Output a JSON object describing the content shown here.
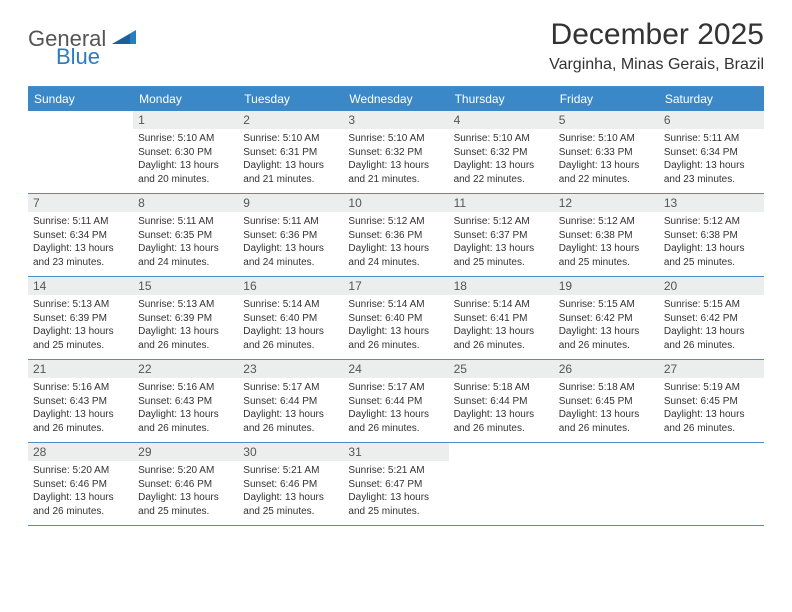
{
  "logo": {
    "text1": "General",
    "text2": "Blue"
  },
  "title": "December 2025",
  "location": "Varginha, Minas Gerais, Brazil",
  "colors": {
    "header_bg": "#3b88c8",
    "header_text": "#ffffff",
    "daynum_bg": "#eceeee",
    "border": "#4a8fc9",
    "body_text": "#333333",
    "logo_gray": "#555555",
    "logo_blue": "#2b7bbf"
  },
  "day_names": [
    "Sunday",
    "Monday",
    "Tuesday",
    "Wednesday",
    "Thursday",
    "Friday",
    "Saturday"
  ],
  "weeks": [
    [
      {
        "n": "",
        "sr": "",
        "ss": "",
        "dl": ""
      },
      {
        "n": "1",
        "sr": "Sunrise: 5:10 AM",
        "ss": "Sunset: 6:30 PM",
        "dl": "Daylight: 13 hours and 20 minutes."
      },
      {
        "n": "2",
        "sr": "Sunrise: 5:10 AM",
        "ss": "Sunset: 6:31 PM",
        "dl": "Daylight: 13 hours and 21 minutes."
      },
      {
        "n": "3",
        "sr": "Sunrise: 5:10 AM",
        "ss": "Sunset: 6:32 PM",
        "dl": "Daylight: 13 hours and 21 minutes."
      },
      {
        "n": "4",
        "sr": "Sunrise: 5:10 AM",
        "ss": "Sunset: 6:32 PM",
        "dl": "Daylight: 13 hours and 22 minutes."
      },
      {
        "n": "5",
        "sr": "Sunrise: 5:10 AM",
        "ss": "Sunset: 6:33 PM",
        "dl": "Daylight: 13 hours and 22 minutes."
      },
      {
        "n": "6",
        "sr": "Sunrise: 5:11 AM",
        "ss": "Sunset: 6:34 PM",
        "dl": "Daylight: 13 hours and 23 minutes."
      }
    ],
    [
      {
        "n": "7",
        "sr": "Sunrise: 5:11 AM",
        "ss": "Sunset: 6:34 PM",
        "dl": "Daylight: 13 hours and 23 minutes."
      },
      {
        "n": "8",
        "sr": "Sunrise: 5:11 AM",
        "ss": "Sunset: 6:35 PM",
        "dl": "Daylight: 13 hours and 24 minutes."
      },
      {
        "n": "9",
        "sr": "Sunrise: 5:11 AM",
        "ss": "Sunset: 6:36 PM",
        "dl": "Daylight: 13 hours and 24 minutes."
      },
      {
        "n": "10",
        "sr": "Sunrise: 5:12 AM",
        "ss": "Sunset: 6:36 PM",
        "dl": "Daylight: 13 hours and 24 minutes."
      },
      {
        "n": "11",
        "sr": "Sunrise: 5:12 AM",
        "ss": "Sunset: 6:37 PM",
        "dl": "Daylight: 13 hours and 25 minutes."
      },
      {
        "n": "12",
        "sr": "Sunrise: 5:12 AM",
        "ss": "Sunset: 6:38 PM",
        "dl": "Daylight: 13 hours and 25 minutes."
      },
      {
        "n": "13",
        "sr": "Sunrise: 5:12 AM",
        "ss": "Sunset: 6:38 PM",
        "dl": "Daylight: 13 hours and 25 minutes."
      }
    ],
    [
      {
        "n": "14",
        "sr": "Sunrise: 5:13 AM",
        "ss": "Sunset: 6:39 PM",
        "dl": "Daylight: 13 hours and 25 minutes."
      },
      {
        "n": "15",
        "sr": "Sunrise: 5:13 AM",
        "ss": "Sunset: 6:39 PM",
        "dl": "Daylight: 13 hours and 26 minutes."
      },
      {
        "n": "16",
        "sr": "Sunrise: 5:14 AM",
        "ss": "Sunset: 6:40 PM",
        "dl": "Daylight: 13 hours and 26 minutes."
      },
      {
        "n": "17",
        "sr": "Sunrise: 5:14 AM",
        "ss": "Sunset: 6:40 PM",
        "dl": "Daylight: 13 hours and 26 minutes."
      },
      {
        "n": "18",
        "sr": "Sunrise: 5:14 AM",
        "ss": "Sunset: 6:41 PM",
        "dl": "Daylight: 13 hours and 26 minutes."
      },
      {
        "n": "19",
        "sr": "Sunrise: 5:15 AM",
        "ss": "Sunset: 6:42 PM",
        "dl": "Daylight: 13 hours and 26 minutes."
      },
      {
        "n": "20",
        "sr": "Sunrise: 5:15 AM",
        "ss": "Sunset: 6:42 PM",
        "dl": "Daylight: 13 hours and 26 minutes."
      }
    ],
    [
      {
        "n": "21",
        "sr": "Sunrise: 5:16 AM",
        "ss": "Sunset: 6:43 PM",
        "dl": "Daylight: 13 hours and 26 minutes."
      },
      {
        "n": "22",
        "sr": "Sunrise: 5:16 AM",
        "ss": "Sunset: 6:43 PM",
        "dl": "Daylight: 13 hours and 26 minutes."
      },
      {
        "n": "23",
        "sr": "Sunrise: 5:17 AM",
        "ss": "Sunset: 6:44 PM",
        "dl": "Daylight: 13 hours and 26 minutes."
      },
      {
        "n": "24",
        "sr": "Sunrise: 5:17 AM",
        "ss": "Sunset: 6:44 PM",
        "dl": "Daylight: 13 hours and 26 minutes."
      },
      {
        "n": "25",
        "sr": "Sunrise: 5:18 AM",
        "ss": "Sunset: 6:44 PM",
        "dl": "Daylight: 13 hours and 26 minutes."
      },
      {
        "n": "26",
        "sr": "Sunrise: 5:18 AM",
        "ss": "Sunset: 6:45 PM",
        "dl": "Daylight: 13 hours and 26 minutes."
      },
      {
        "n": "27",
        "sr": "Sunrise: 5:19 AM",
        "ss": "Sunset: 6:45 PM",
        "dl": "Daylight: 13 hours and 26 minutes."
      }
    ],
    [
      {
        "n": "28",
        "sr": "Sunrise: 5:20 AM",
        "ss": "Sunset: 6:46 PM",
        "dl": "Daylight: 13 hours and 26 minutes."
      },
      {
        "n": "29",
        "sr": "Sunrise: 5:20 AM",
        "ss": "Sunset: 6:46 PM",
        "dl": "Daylight: 13 hours and 25 minutes."
      },
      {
        "n": "30",
        "sr": "Sunrise: 5:21 AM",
        "ss": "Sunset: 6:46 PM",
        "dl": "Daylight: 13 hours and 25 minutes."
      },
      {
        "n": "31",
        "sr": "Sunrise: 5:21 AM",
        "ss": "Sunset: 6:47 PM",
        "dl": "Daylight: 13 hours and 25 minutes."
      },
      {
        "n": "",
        "sr": "",
        "ss": "",
        "dl": ""
      },
      {
        "n": "",
        "sr": "",
        "ss": "",
        "dl": ""
      },
      {
        "n": "",
        "sr": "",
        "ss": "",
        "dl": ""
      }
    ]
  ]
}
